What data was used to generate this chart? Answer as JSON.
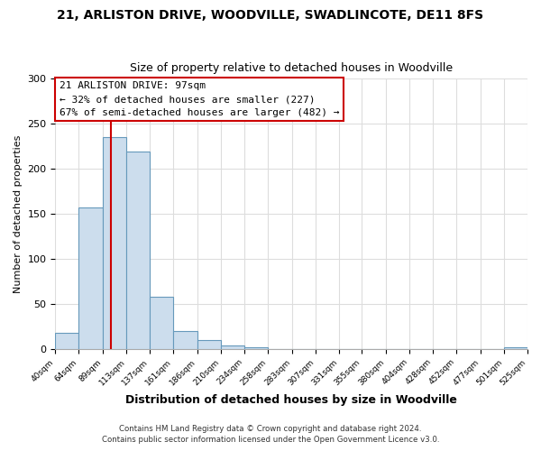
{
  "title": "21, ARLISTON DRIVE, WOODVILLE, SWADLINCOTE, DE11 8FS",
  "subtitle": "Size of property relative to detached houses in Woodville",
  "xlabel": "Distribution of detached houses by size in Woodville",
  "ylabel": "Number of detached properties",
  "bar_edges": [
    40,
    64,
    89,
    113,
    137,
    161,
    186,
    210,
    234,
    258,
    283,
    307,
    331,
    355,
    380,
    404,
    428,
    452,
    477,
    501,
    525
  ],
  "bar_heights": [
    18,
    157,
    235,
    219,
    58,
    20,
    10,
    4,
    2,
    0,
    0,
    0,
    0,
    0,
    0,
    0,
    0,
    0,
    0,
    2
  ],
  "bar_color": "#ccdded",
  "bar_edge_color": "#6699bb",
  "highlight_x": 97,
  "annotation_title": "21 ARLISTON DRIVE: 97sqm",
  "annotation_line1": "← 32% of detached houses are smaller (227)",
  "annotation_line2": "67% of semi-detached houses are larger (482) →",
  "annotation_box_color": "#ffffff",
  "annotation_box_edge": "#cc0000",
  "vline_color": "#cc0000",
  "ylim": [
    0,
    300
  ],
  "xlim_min": 40,
  "xlim_max": 525,
  "tick_labels": [
    "40sqm",
    "64sqm",
    "89sqm",
    "113sqm",
    "137sqm",
    "161sqm",
    "186sqm",
    "210sqm",
    "234sqm",
    "258sqm",
    "283sqm",
    "307sqm",
    "331sqm",
    "355sqm",
    "380sqm",
    "404sqm",
    "428sqm",
    "452sqm",
    "477sqm",
    "501sqm",
    "525sqm"
  ],
  "footer1": "Contains HM Land Registry data © Crown copyright and database right 2024.",
  "footer2": "Contains public sector information licensed under the Open Government Licence v3.0.",
  "background_color": "#ffffff",
  "plot_background": "#ffffff",
  "grid_color": "#dddddd"
}
